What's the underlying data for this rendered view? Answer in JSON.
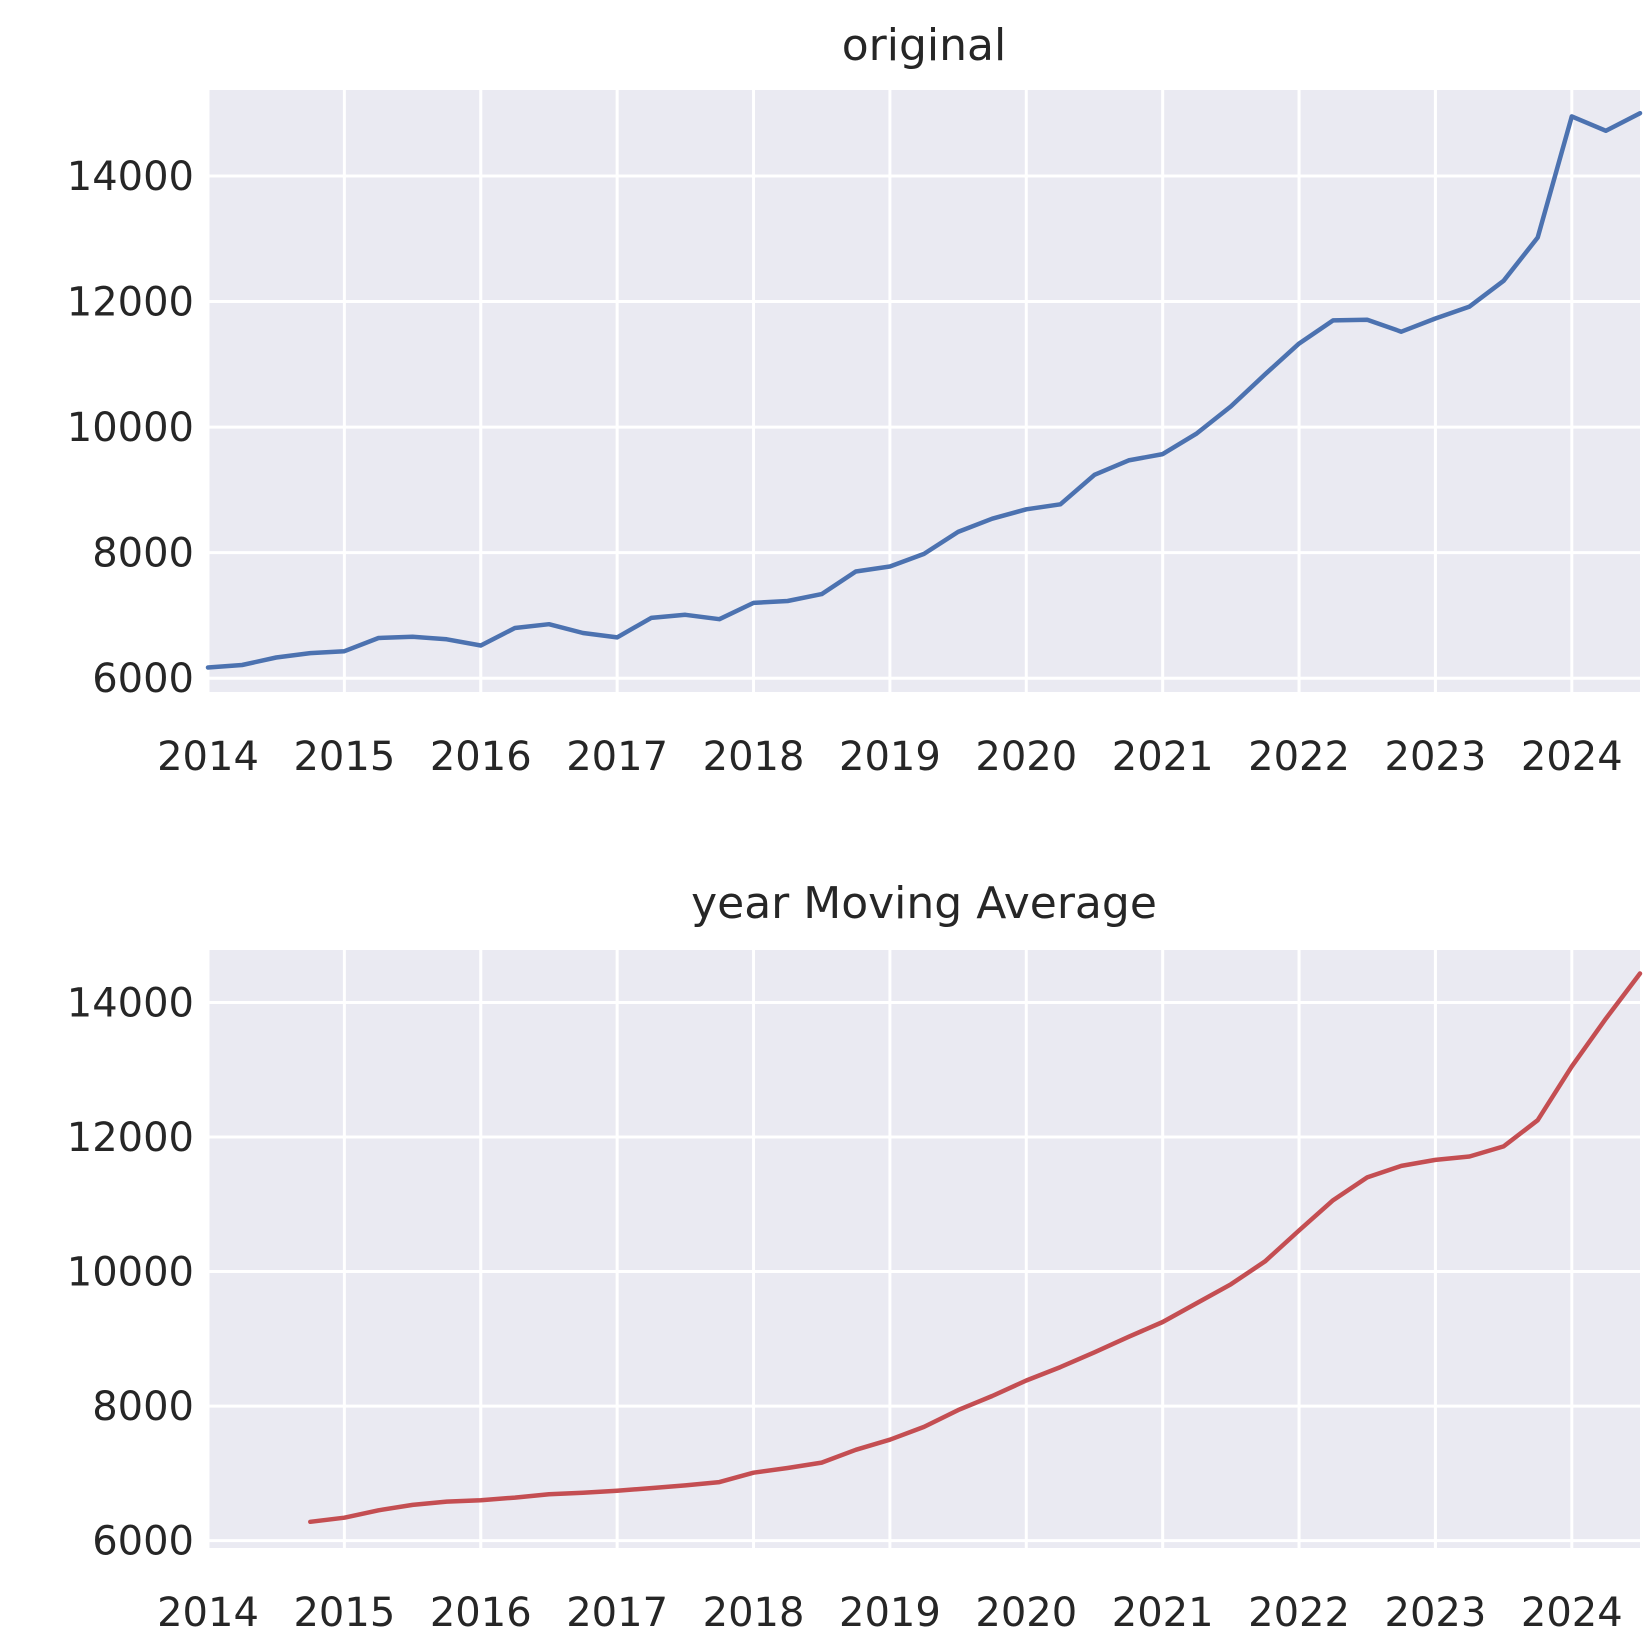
{
  "chart_data": [
    {
      "type": "line",
      "title": "original",
      "xlabel": "",
      "ylabel": "",
      "xlim": [
        2014.0,
        2024.5
      ],
      "ylim": [
        5780,
        15370
      ],
      "x_ticks": [
        2014,
        2015,
        2016,
        2017,
        2018,
        2019,
        2020,
        2021,
        2022,
        2023,
        2024
      ],
      "x_tick_labels": [
        "2014",
        "2015",
        "2016",
        "2017",
        "2018",
        "2019",
        "2020",
        "2021",
        "2022",
        "2023",
        "2024"
      ],
      "y_ticks": [
        6000,
        8000,
        10000,
        12000,
        14000
      ],
      "y_tick_labels": [
        "6000",
        "8000",
        "10000",
        "12000",
        "14000"
      ],
      "grid": true,
      "series": [
        {
          "color": "#4c72b0",
          "x": [
            2014.0,
            2014.25,
            2014.5,
            2014.75,
            2015.0,
            2015.25,
            2015.5,
            2015.75,
            2016.0,
            2016.25,
            2016.5,
            2016.75,
            2017.0,
            2017.25,
            2017.5,
            2017.75,
            2018.0,
            2018.25,
            2018.5,
            2018.75,
            2019.0,
            2019.25,
            2019.5,
            2019.75,
            2020.0,
            2020.25,
            2020.5,
            2020.75,
            2021.0,
            2021.25,
            2021.5,
            2021.75,
            2022.0,
            2022.25,
            2022.5,
            2022.75,
            2023.0,
            2023.25,
            2023.5,
            2023.75,
            2024.0,
            2024.25,
            2024.5
          ],
          "values": [
            6170,
            6210,
            6330,
            6400,
            6430,
            6640,
            6660,
            6620,
            6520,
            6800,
            6860,
            6720,
            6650,
            6960,
            7010,
            6940,
            7200,
            7230,
            7340,
            7700,
            7780,
            7980,
            8330,
            8540,
            8690,
            8770,
            9240,
            9470,
            9570,
            9900,
            10330,
            10840,
            11330,
            11700,
            11710,
            11520,
            11730,
            11920,
            12330,
            13020,
            14950,
            14720,
            15000
          ]
        }
      ]
    },
    {
      "type": "line",
      "title": "year Moving Average",
      "xlabel": "",
      "ylabel": "",
      "xlim": [
        2014.0,
        2024.5
      ],
      "ylim": [
        5890,
        14780
      ],
      "x_ticks": [
        2014,
        2015,
        2016,
        2017,
        2018,
        2019,
        2020,
        2021,
        2022,
        2023,
        2024
      ],
      "x_tick_labels": [
        "2014",
        "2015",
        "2016",
        "2017",
        "2018",
        "2019",
        "2020",
        "2021",
        "2022",
        "2023",
        "2024"
      ],
      "y_ticks": [
        6000,
        8000,
        10000,
        12000,
        14000
      ],
      "y_tick_labels": [
        "6000",
        "8000",
        "10000",
        "12000",
        "14000"
      ],
      "grid": true,
      "series": [
        {
          "color": "#c44e52",
          "x": [
            2014.75,
            2015.0,
            2015.25,
            2015.5,
            2015.75,
            2016.0,
            2016.25,
            2016.5,
            2016.75,
            2017.0,
            2017.25,
            2017.5,
            2017.75,
            2018.0,
            2018.25,
            2018.5,
            2018.75,
            2019.0,
            2019.25,
            2019.5,
            2019.75,
            2020.0,
            2020.25,
            2020.5,
            2020.75,
            2021.0,
            2021.25,
            2021.5,
            2021.75,
            2022.0,
            2022.25,
            2022.5,
            2022.75,
            2023.0,
            2023.25,
            2023.5,
            2023.75,
            2024.0,
            2024.25,
            2024.5
          ],
          "values": [
            6280,
            6340,
            6450,
            6530,
            6580,
            6600,
            6640,
            6690,
            6710,
            6740,
            6780,
            6820,
            6870,
            7010,
            7080,
            7160,
            7350,
            7500,
            7690,
            7940,
            8150,
            8380,
            8580,
            8800,
            9030,
            9250,
            9530,
            9810,
            10150,
            10610,
            11060,
            11400,
            11570,
            11660,
            11710,
            11860,
            12250,
            13050,
            13760,
            14430
          ]
        }
      ]
    }
  ]
}
